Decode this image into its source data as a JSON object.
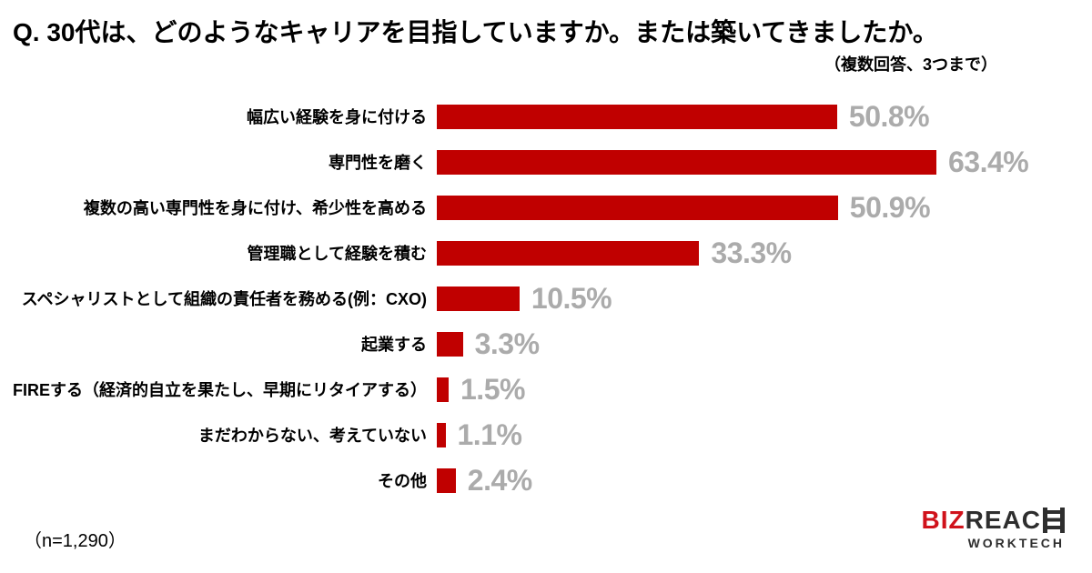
{
  "title": "Q. 30代は、どのようなキャリアを目指していますか。または築いてきましたか。",
  "subtitle": "（複数回答、3つまで）",
  "sample_note": "（n=1,290）",
  "colors": {
    "bar": "#c00000",
    "value_label": "#ababab",
    "title_text": "#000000",
    "logo_red": "#d0121b",
    "logo_dark": "#2e2e2e"
  },
  "chart_data": {
    "type": "bar",
    "orientation": "horizontal",
    "title": "Q. 30代は、どのようなキャリアを目指していますか。または築いてきましたか。",
    "note": "（複数回答、3つまで）",
    "sample_size": "n=1,290",
    "value_suffix": "%",
    "xlim": [
      0,
      70
    ],
    "grid": false,
    "legend": false,
    "categories": [
      "幅広い経験を身に付ける",
      "専門性を磨く",
      "複数の高い専門性を身に付け、希少性を高める",
      "管理職として経験を積む",
      "スペシャリストとして組織の責任者を務める(例：CXO)",
      "起業する",
      "FIREする（経済的自立を果たし、早期にリタイアする）",
      "まだわからない、考えていない",
      "その他"
    ],
    "values": [
      50.8,
      63.4,
      50.9,
      33.3,
      10.5,
      3.3,
      1.5,
      1.1,
      2.4
    ]
  },
  "logo": {
    "brand_red": "BIZ",
    "brand_dark": "REAC",
    "ladder_letter": "H",
    "sub_label": "WORKTECH"
  }
}
